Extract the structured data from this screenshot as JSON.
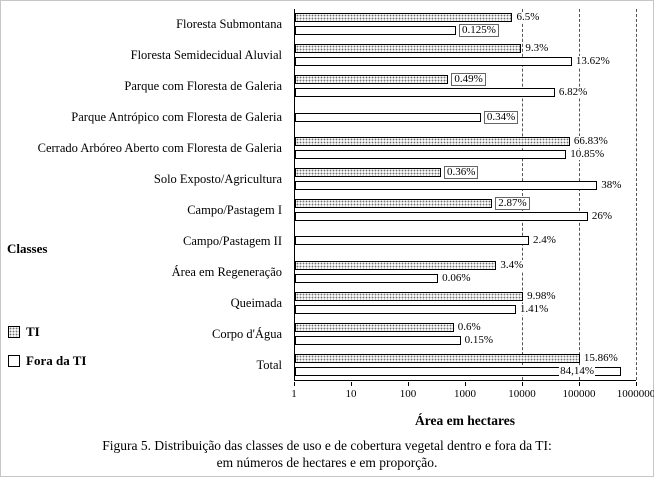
{
  "figure": {
    "caption_line1": "Figura 5. Distribuição das classes de uso e de cobertura vegetal dentro e fora da TI:",
    "caption_line2": "em números de hectares e em proporção."
  },
  "chart_data": {
    "type": "bar",
    "orientation": "horizontal",
    "x_scale": "log10",
    "xlim": [
      1,
      1000000
    ],
    "x_ticks": [
      1,
      10,
      100,
      1000,
      10000,
      100000,
      1000000
    ],
    "xlabel": "Área em hectares",
    "ylabel": "Classes",
    "gridlines_at": [
      10000,
      100000,
      1000000
    ],
    "hectares_estimated": true,
    "legend": [
      {
        "name": "TI",
        "fill": "stipple"
      },
      {
        "name": "Fora da TI",
        "fill": "white"
      }
    ],
    "rows": [
      {
        "label": "Floresta Submontana",
        "bars": [
          {
            "series": "TI",
            "pct": "6.5%",
            "hectares": 6700,
            "boxed": false
          },
          {
            "series": "Fora da TI",
            "pct": "0.125%",
            "hectares": 680,
            "boxed": true
          }
        ]
      },
      {
        "label": "Floresta Semidecidual Aluvial",
        "bars": [
          {
            "series": "TI",
            "pct": "9.3%",
            "hectares": 9600,
            "boxed": false
          },
          {
            "series": "Fora da TI",
            "pct": "13.62%",
            "hectares": 74500,
            "boxed": false
          }
        ]
      },
      {
        "label": "Parque com Floresta de Galeria",
        "bars": [
          {
            "series": "TI",
            "pct": "0.49%",
            "hectares": 500,
            "boxed": true
          },
          {
            "series": "Fora da TI",
            "pct": "6.82%",
            "hectares": 37300,
            "boxed": false
          }
        ]
      },
      {
        "label": "Parque Antrópico com Floresta de Galeria",
        "bars": [
          {
            "series": "Fora da TI",
            "pct": "0.34%",
            "hectares": 1860,
            "boxed": true
          }
        ]
      },
      {
        "label": "Cerrado Arbóreo Aberto com Floresta de Galeria",
        "bars": [
          {
            "series": "TI",
            "pct": "66.83%",
            "hectares": 68800,
            "boxed": false
          },
          {
            "series": "Fora da TI",
            "pct": "10.85%",
            "hectares": 59400,
            "boxed": false
          }
        ]
      },
      {
        "label": "Solo Exposto/Agricultura",
        "bars": [
          {
            "series": "TI",
            "pct": "0.36%",
            "hectares": 370,
            "boxed": true
          },
          {
            "series": "Fora da TI",
            "pct": "38%",
            "hectares": 207900,
            "boxed": false
          }
        ]
      },
      {
        "label": "Campo/Pastagem I",
        "bars": [
          {
            "series": "TI",
            "pct": "2.87%",
            "hectares": 2960,
            "boxed": true
          },
          {
            "series": "Fora da TI",
            "pct": "26%",
            "hectares": 142200,
            "boxed": false
          }
        ]
      },
      {
        "label": "Campo/Pastagem II",
        "bars": [
          {
            "series": "Fora da TI",
            "pct": "2.4%",
            "hectares": 13100,
            "boxed": false
          }
        ]
      },
      {
        "label": "Área em Regeneração",
        "bars": [
          {
            "series": "TI",
            "pct": "3.4%",
            "hectares": 3500,
            "boxed": false
          },
          {
            "series": "Fora da TI",
            "pct": "0.06%",
            "hectares": 330,
            "boxed": false
          }
        ]
      },
      {
        "label": "Queimada",
        "bars": [
          {
            "series": "TI",
            "pct": "9.98%",
            "hectares": 10300,
            "boxed": false
          },
          {
            "series": "Fora da TI",
            "pct": "1.41%",
            "hectares": 7700,
            "boxed": false
          }
        ]
      },
      {
        "label": "Corpo d'Água",
        "bars": [
          {
            "series": "TI",
            "pct": "0.6%",
            "hectares": 620,
            "boxed": false
          },
          {
            "series": "Fora da TI",
            "pct": "0.15%",
            "hectares": 820,
            "boxed": false
          }
        ]
      },
      {
        "label": "Total",
        "bars": [
          {
            "series": "TI",
            "pct": "15.86%",
            "hectares": 103000,
            "boxed": false
          },
          {
            "series": "Fora da TI",
            "pct": "84,14%",
            "hectares": 547000,
            "boxed": false,
            "label_dx": -62
          }
        ]
      }
    ]
  }
}
